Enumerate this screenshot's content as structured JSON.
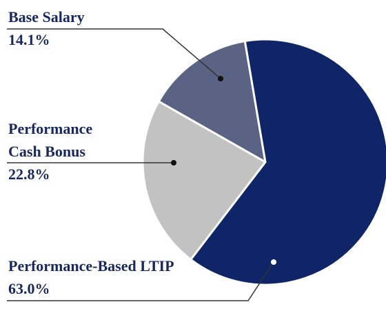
{
  "chart_data": {
    "type": "pie",
    "categories": [
      "Base Salary",
      "Performance Cash Bonus",
      "Performance-Based LTIP"
    ],
    "values": [
      14.1,
      22.8,
      63.0
    ],
    "value_labels": [
      "14.1%",
      "22.8%",
      "63.0%"
    ],
    "colors": [
      "#5b6384",
      "#c2c2c2",
      "#0f2567"
    ]
  }
}
